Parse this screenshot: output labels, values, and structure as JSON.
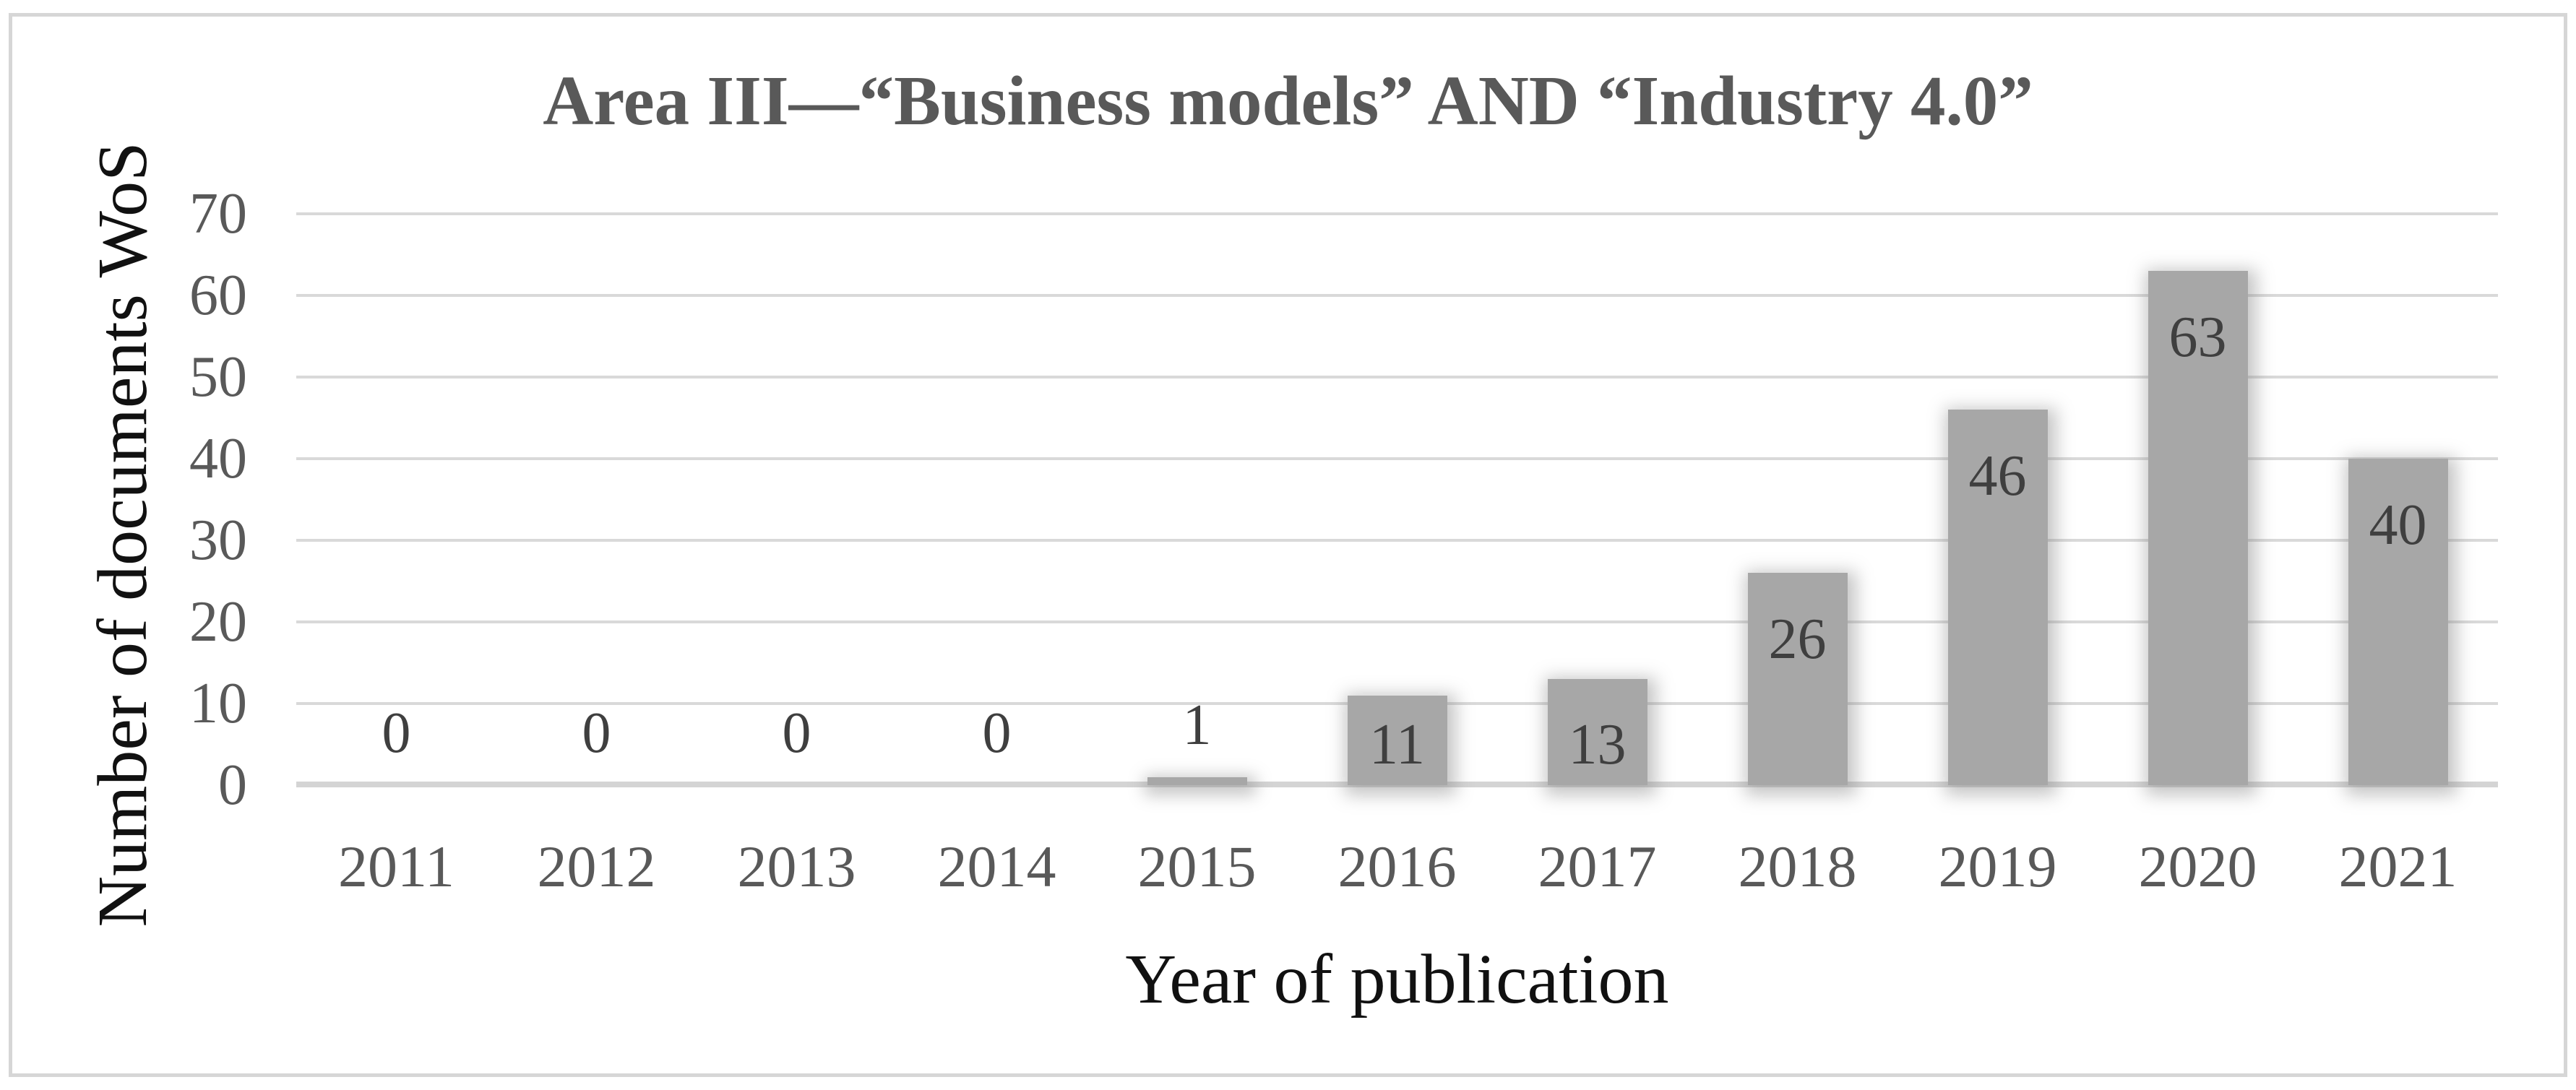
{
  "chart": {
    "title": "Area III—“Business models” AND “Industry 4.0”",
    "y_axis_title": "Number of documents WoS",
    "x_axis_title": "Year of publication"
  },
  "chart_data": {
    "type": "bar",
    "title": "Area III—“Business models” AND “Industry 4.0”",
    "xlabel": "Year of publication",
    "ylabel": "Number of documents WoS",
    "categories": [
      "2011",
      "2012",
      "2013",
      "2014",
      "2015",
      "2016",
      "2017",
      "2018",
      "2019",
      "2020",
      "2021"
    ],
    "values": [
      0,
      0,
      0,
      0,
      1,
      11,
      13,
      26,
      46,
      63,
      40
    ],
    "data_labels": [
      "0",
      "0",
      "0",
      "0",
      "1",
      "11",
      "13",
      "26",
      "46",
      "63",
      "40"
    ],
    "ylim": [
      0,
      70
    ],
    "ytick_interval": 10,
    "ytick_labels": [
      "0",
      "10",
      "20",
      "30",
      "40",
      "50",
      "60",
      "70"
    ],
    "grid": true,
    "legend": false,
    "bar_color": "#a7a7a7",
    "data_label_color": "#3f3f3f",
    "tick_label_color": "#595959",
    "gridline_color": "#d9d9d9",
    "axis_title_color": "#111111",
    "title_color": "#595959",
    "frame_border_color": "#d6d6d6"
  }
}
